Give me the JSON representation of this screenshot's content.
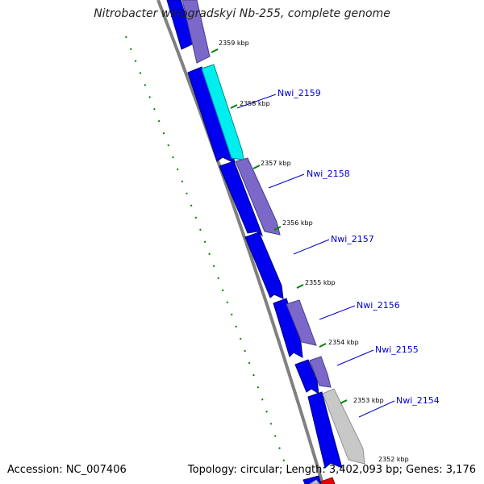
{
  "title": "Nitrobacter winogradskyi Nb-255, complete genome",
  "footer": {
    "accession": "Accession: NC_007406",
    "summary": "Topology: circular; Length: 3,402,093 bp; Genes: 3,176"
  },
  "colors": {
    "backbone": "#808080",
    "reverse_strand": "#0000ee",
    "forward_strand": "#7b68c8",
    "highlighted_gene": "#00eeee",
    "grey_gene": "#c8c8c8",
    "red_gene": "#ee0000",
    "tick_marks": "#008000",
    "gene_labels": "#0000cc"
  },
  "tick_labels": [
    "2359 kbp",
    "2358 kbp",
    "2357 kbp",
    "2356 kbp",
    "2355 kbp",
    "2354 kbp",
    "2353 kbp",
    "2352 kbp"
  ],
  "gene_labels": [
    "Nwi_2159",
    "Nwi_2158",
    "Nwi_2157",
    "Nwi_2156",
    "Nwi_2155",
    "Nwi_2154"
  ]
}
